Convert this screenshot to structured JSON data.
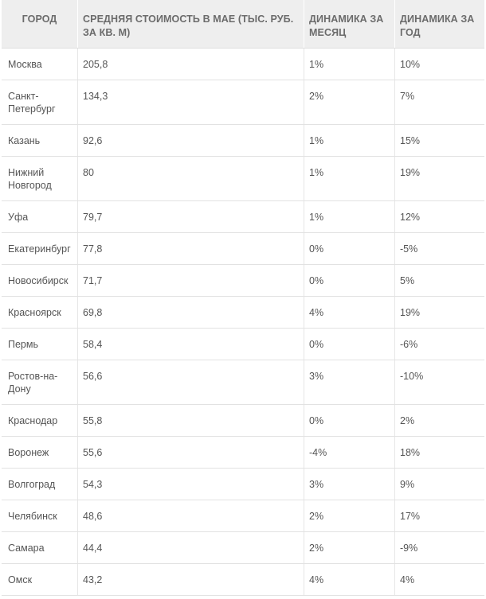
{
  "table": {
    "headers": [
      "ГОРОД",
      "СРЕДНЯЯ СТОИМОСТЬ В МАЕ (ТЫС. РУБ. ЗА КВ. М)",
      "ДИНАМИКА ЗА МЕСЯЦ",
      "ДИНАМИКА ЗА ГОД"
    ],
    "rows": [
      {
        "city": "Москва",
        "price": "205,8",
        "month": "1%",
        "year": "10%"
      },
      {
        "city": "Санкт-Петербург",
        "price": "134,3",
        "month": "2%",
        "year": "7%"
      },
      {
        "city": "Казань",
        "price": "92,6",
        "month": "1%",
        "year": "15%"
      },
      {
        "city": "Нижний Новгород",
        "price": "80",
        "month": "1%",
        "year": "19%"
      },
      {
        "city": "Уфа",
        "price": "79,7",
        "month": "1%",
        "year": "12%"
      },
      {
        "city": "Екатеринбург",
        "price": "77,8",
        "month": "0%",
        "year": "-5%"
      },
      {
        "city": "Новосибирск",
        "price": "71,7",
        "month": "0%",
        "year": "5%"
      },
      {
        "city": "Красноярск",
        "price": "69,8",
        "month": "4%",
        "year": "19%"
      },
      {
        "city": "Пермь",
        "price": "58,4",
        "month": "0%",
        "year": "-6%"
      },
      {
        "city": "Ростов-на-Дону",
        "price": "56,6",
        "month": "3%",
        "year": "-10%"
      },
      {
        "city": "Краснодар",
        "price": "55,8",
        "month": "0%",
        "year": "2%"
      },
      {
        "city": "Воронеж",
        "price": "55,6",
        "month": "-4%",
        "year": "18%"
      },
      {
        "city": "Волгоград",
        "price": "54,3",
        "month": "3%",
        "year": "9%"
      },
      {
        "city": "Челябинск",
        "price": "48,6",
        "month": "2%",
        "year": "17%"
      },
      {
        "city": "Самара",
        "price": "44,4",
        "month": "2%",
        "year": "-9%"
      },
      {
        "city": "Омск",
        "price": "43,2",
        "month": "4%",
        "year": "4%"
      }
    ]
  }
}
